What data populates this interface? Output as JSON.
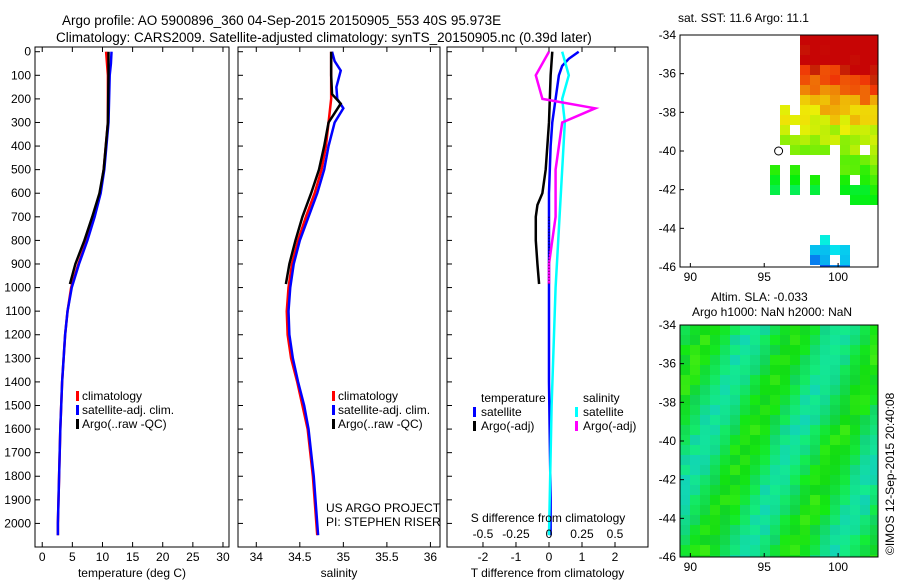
{
  "title": [
    "Argo profile: AO 5900896_360 04-Sep-2015 20150905_553 40S 95.973E",
    "Climatology: CARS2009. Satellite-adjusted climatology: synTS_20150905.nc (0.39d later)"
  ],
  "colors": {
    "climatology": "#ff0000",
    "satellite": "#0000ff",
    "argo": "#000000",
    "sal_sat": "#00ffff",
    "sal_argo": "#ff00ff"
  },
  "chart_data": [
    {
      "type": "line",
      "name": "temperature",
      "xlabel": "temperature (deg C)",
      "xlim": [
        -1.2,
        31
      ],
      "ylim": [
        2100,
        -20
      ],
      "xticks": [
        0,
        5,
        10,
        15,
        20,
        25,
        30
      ],
      "yticks": [
        0,
        100,
        200,
        300,
        400,
        500,
        600,
        700,
        800,
        900,
        1000,
        1100,
        1200,
        1300,
        1400,
        1500,
        1600,
        1700,
        1800,
        1900,
        2000
      ],
      "legend": [
        "climatology",
        "satellite-adj. clim.",
        "Argo(..raw -QC)"
      ],
      "series": [
        {
          "name": "climatology",
          "color": "#ff0000",
          "depth": [
            0,
            100,
            300,
            500,
            600,
            700,
            800,
            900,
            1000,
            1100,
            1200,
            1400,
            1600,
            1800,
            2000,
            2050
          ],
          "values": [
            10.6,
            10.9,
            10.9,
            10.2,
            9.6,
            8.6,
            7.4,
            6.0,
            4.8,
            4.2,
            3.8,
            3.3,
            3.0,
            2.8,
            2.6,
            2.6
          ]
        },
        {
          "name": "satellite-adj. clim.",
          "color": "#0000ff",
          "depth": [
            0,
            50,
            100,
            300,
            500,
            600,
            700,
            800,
            900,
            1000,
            1100,
            1200,
            1400,
            1600,
            1800,
            2000,
            2050
          ],
          "values": [
            11.5,
            11.4,
            11.2,
            11.0,
            10.3,
            9.7,
            8.7,
            7.5,
            6.1,
            4.9,
            4.2,
            3.8,
            3.3,
            3.0,
            2.8,
            2.6,
            2.6
          ]
        },
        {
          "name": "Argo(..raw -QC)",
          "color": "#000000",
          "depth": [
            0,
            100,
            300,
            500,
            600,
            700,
            800,
            900,
            985
          ],
          "values": [
            11.0,
            11.0,
            10.9,
            10.2,
            9.5,
            8.3,
            7.0,
            5.5,
            4.6
          ]
        }
      ]
    },
    {
      "type": "line",
      "name": "salinity",
      "xlabel": "salinity",
      "xlim": [
        33.79,
        36.11
      ],
      "ylim": [
        2100,
        -20
      ],
      "xticks": [
        34,
        34.5,
        35,
        35.5,
        36
      ],
      "legend": [
        "climatology",
        "satellite-adj. clim.",
        "Argo(..raw -QC)"
      ],
      "annotation": [
        "US ARGO PROJECT",
        "PI: STEPHEN RISER"
      ],
      "series": [
        {
          "name": "climatology",
          "color": "#ff0000",
          "depth": [
            0,
            200,
            400,
            500,
            600,
            700,
            800,
            900,
            1000,
            1100,
            1200,
            1300,
            1400,
            1500,
            1600,
            1800,
            2000,
            2050
          ],
          "values": [
            34.86,
            34.86,
            34.8,
            34.75,
            34.67,
            34.57,
            34.48,
            34.41,
            34.37,
            34.35,
            34.36,
            34.4,
            34.47,
            34.53,
            34.59,
            34.65,
            34.69,
            34.7
          ]
        },
        {
          "name": "satellite-adj. clim.",
          "color": "#0000ff",
          "depth": [
            0,
            40,
            80,
            150,
            200,
            240,
            300,
            400,
            500,
            600,
            700,
            800,
            900,
            1000,
            1100,
            1200,
            1300,
            1400,
            1500,
            1600,
            1800,
            2000,
            2050
          ],
          "values": [
            34.87,
            34.9,
            34.97,
            34.92,
            34.93,
            35.0,
            34.9,
            34.83,
            34.78,
            34.7,
            34.6,
            34.5,
            34.43,
            34.39,
            34.37,
            34.38,
            34.42,
            34.48,
            34.55,
            34.6,
            34.66,
            34.7,
            34.71
          ]
        },
        {
          "name": "Argo(..raw -QC)",
          "color": "#000000",
          "depth": [
            0,
            100,
            180,
            220,
            260,
            300,
            400,
            500,
            600,
            700,
            800,
            900,
            985
          ],
          "values": [
            34.86,
            34.86,
            34.87,
            34.97,
            34.9,
            34.83,
            34.78,
            34.72,
            34.63,
            34.53,
            34.45,
            34.38,
            34.34
          ]
        }
      ]
    },
    {
      "type": "line",
      "name": "difference",
      "xlabel": "T difference from climatology",
      "x2label": "S difference from climatology",
      "xlim": [
        -3.09,
        3.0
      ],
      "ylim": [
        2100,
        -20
      ],
      "xticks": [
        -2,
        -1,
        0,
        1,
        2
      ],
      "x2ticks": [
        "-0.5",
        "-0.25",
        "0",
        "0.25",
        "0.5"
      ],
      "legend": {
        "temperature": "temperature",
        "salinity": "salinity",
        "items": [
          "satellite",
          "Argo(-adj)",
          "satellite",
          "Argo(-adj)"
        ]
      },
      "series": [
        {
          "name": "T satellite",
          "color": "#0000ff",
          "depth": [
            0,
            30,
            60,
            100,
            200,
            300,
            400,
            600,
            1000,
            1400,
            1900,
            2050
          ],
          "values": [
            0.9,
            0.6,
            0.4,
            0.3,
            0.2,
            0.1,
            0.05,
            0,
            0,
            0,
            0.05,
            0.05
          ]
        },
        {
          "name": "T Argo(-adj)",
          "color": "#000000",
          "depth": [
            0,
            100,
            300,
            500,
            600,
            650,
            700,
            800,
            900,
            985
          ],
          "values": [
            0.1,
            0.05,
            0,
            -0.1,
            -0.2,
            -0.35,
            -0.4,
            -0.4,
            -0.35,
            -0.3
          ]
        },
        {
          "name": "S satellite",
          "color": "#00ffff",
          "depth": [
            0,
            100,
            200,
            300,
            500,
            1000,
            1500,
            2050
          ],
          "values": [
            0.1,
            0.15,
            0.1,
            0.12,
            0.1,
            0.05,
            0.02,
            0
          ],
          "scale": "x2"
        },
        {
          "name": "S Argo(-adj)",
          "color": "#ff00ff",
          "depth": [
            0,
            100,
            200,
            240,
            300,
            500,
            700,
            900,
            985
          ],
          "values": [
            0.0,
            -0.1,
            -0.05,
            0.35,
            0.1,
            0.05,
            0.05,
            0,
            0
          ],
          "scale": "x2"
        }
      ]
    }
  ],
  "sst_map": {
    "title": "sat. SST: 11.6 Argo: 11.1",
    "xticks": [
      "90",
      "95",
      "100"
    ],
    "yticks": [
      "-34",
      "-36",
      "-38",
      "-40",
      "-42",
      "-44",
      "-46"
    ]
  },
  "sla_map": {
    "title": [
      "Altim. SLA: -0.033",
      "Argo h1000: NaN h2000: NaN"
    ],
    "xticks": [
      "90",
      "95",
      "100"
    ],
    "yticks": [
      "-34",
      "-36",
      "-38",
      "-40",
      "-42",
      "-44",
      "-46"
    ]
  },
  "credit": "©IMOS 12-Sep-2015 20:40:08"
}
